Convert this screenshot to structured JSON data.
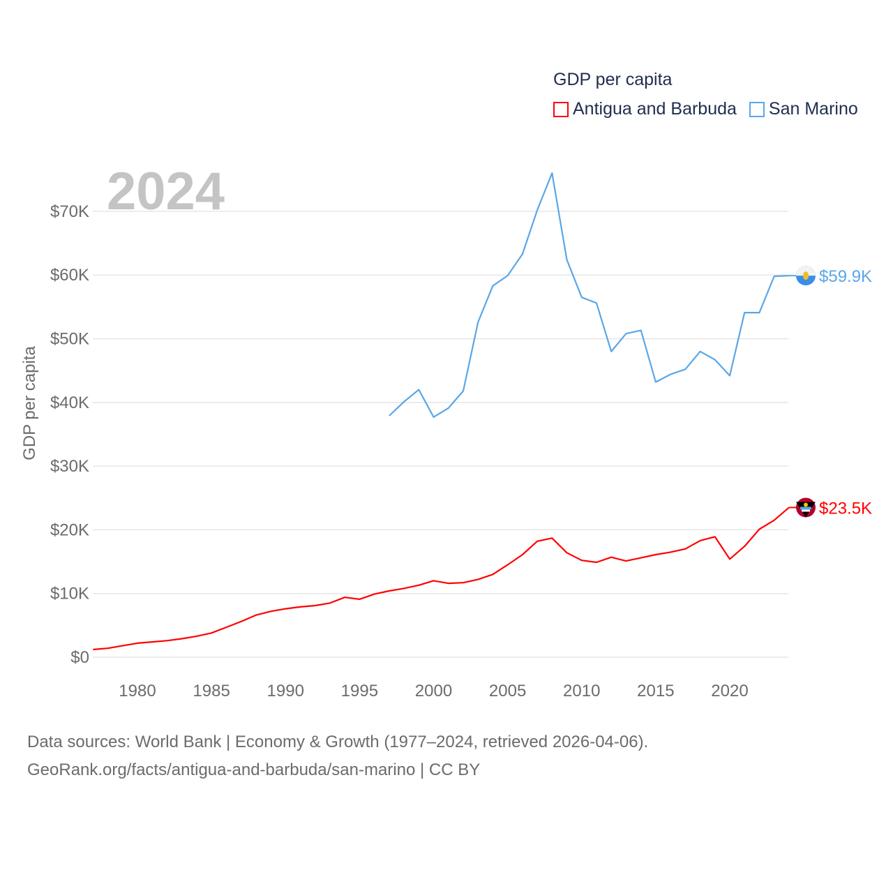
{
  "chart_data": {
    "type": "line",
    "title": "GDP per capita",
    "year_label": "2024",
    "ylabel": "GDP per capita",
    "xlabel": "",
    "xlim": [
      1977,
      2024
    ],
    "ylim": [
      0,
      76000
    ],
    "x_ticks": [
      1980,
      1985,
      1990,
      1995,
      2000,
      2005,
      2010,
      2015,
      2020
    ],
    "y_ticks": [
      0,
      10000,
      20000,
      30000,
      40000,
      50000,
      60000,
      70000
    ],
    "y_tick_labels": [
      "$0",
      "$10K",
      "$20K",
      "$30K",
      "$40K",
      "$50K",
      "$60K",
      "$70K"
    ],
    "grid": true,
    "legend_placement": "top-right",
    "series": [
      {
        "name": "Antigua and Barbuda",
        "color": "#ff0000",
        "end_label": "$23.5K",
        "flag_icon": "antigua-and-barbuda-flag-icon",
        "start_year": 1977,
        "values": [
          1200,
          1400,
          1800,
          2200,
          2400,
          2600,
          2900,
          3300,
          3800,
          4700,
          5600,
          6600,
          7200,
          7600,
          7900,
          8100,
          8500,
          9400,
          9100,
          9900,
          10400,
          10800,
          11300,
          12000,
          11600,
          11700,
          12200,
          13000,
          14500,
          16100,
          18200,
          18700,
          16400,
          15200,
          14900,
          15700,
          15100,
          15600,
          16100,
          16500,
          17000,
          18300,
          18900,
          15400,
          17400,
          20100,
          21500,
          23500
        ]
      },
      {
        "name": "San Marino",
        "color": "#5aa6e8",
        "end_label": "$59.9K",
        "flag_icon": "san-marino-flag-icon",
        "start_year": 1997,
        "values": [
          37900,
          40100,
          42000,
          37700,
          39100,
          41800,
          52600,
          58300,
          59900,
          63300,
          70200,
          76000,
          62400,
          56500,
          55600,
          48000,
          50800,
          51300,
          43200,
          44400,
          45200,
          48000,
          46700,
          44200,
          54100,
          54100,
          59800,
          59900
        ]
      }
    ]
  },
  "footer": {
    "line1": "Data sources: World Bank | Economy & Growth (1977–2024, retrieved 2026-04-06).",
    "line2": "GeoRank.org/facts/antigua-and-barbuda/san-marino | CC BY"
  }
}
